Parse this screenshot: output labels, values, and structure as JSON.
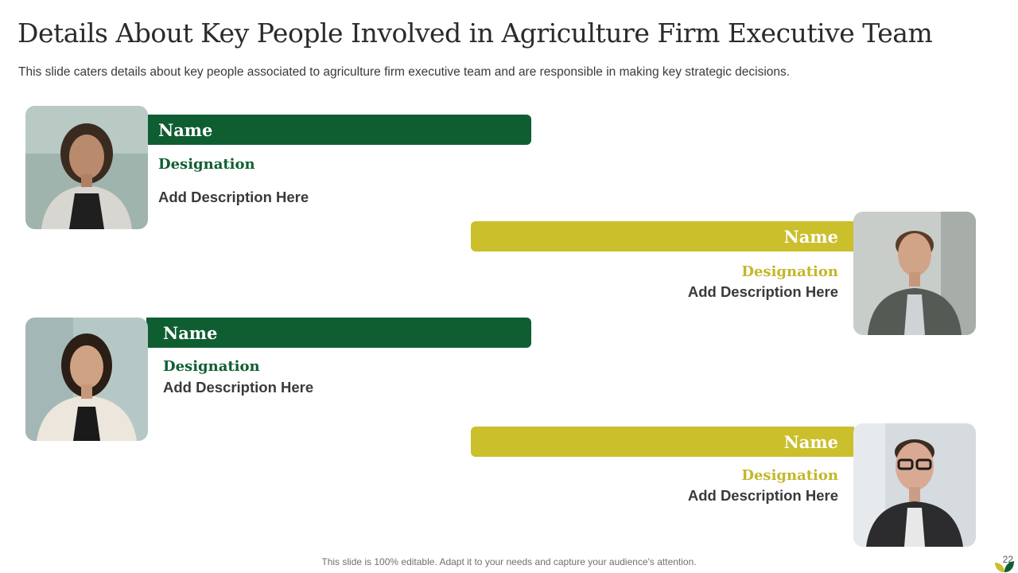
{
  "slide": {
    "title": "Details About Key People Involved in Agriculture Firm Executive Team",
    "subtitle": "This slide caters details about key people associated to agriculture firm executive team and are responsible in making key strategic decisions.",
    "footer": "This slide is 100% editable. Adapt it to your needs and capture your audience's attention.",
    "page_number": "22"
  },
  "people": [
    {
      "name": "Name",
      "designation": "Designation",
      "description": "Add Description Here",
      "photo_icon": "woman-portrait-photo"
    },
    {
      "name": "Name",
      "designation": "Designation",
      "description": "Add Description Here",
      "photo_icon": "man-portrait-photo"
    },
    {
      "name": "Name",
      "designation": "Designation",
      "description": "Add Description Here",
      "photo_icon": "woman-portrait-photo"
    },
    {
      "name": "Name",
      "designation": "Designation",
      "description": "Add Description Here",
      "photo_icon": "man-glasses-portrait-photo"
    }
  ],
  "colors": {
    "green": "#0f5e32",
    "yellow": "#cbbf2c"
  }
}
